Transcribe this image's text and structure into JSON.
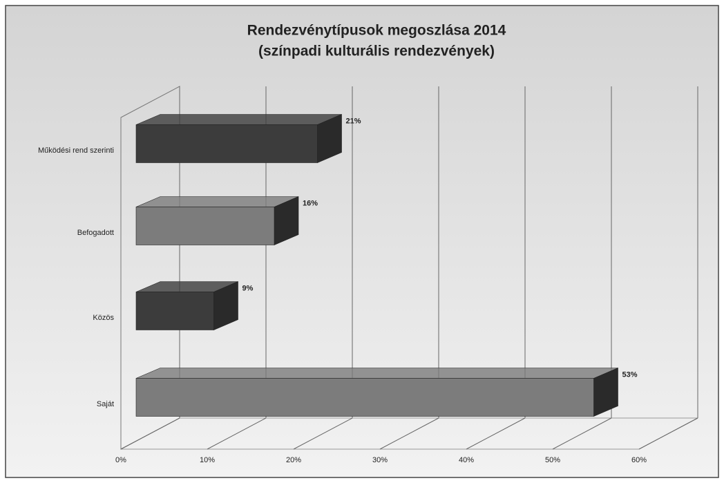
{
  "chart_data": {
    "type": "bar3d",
    "title": "Rendezvénytípusok megoszlása 2014",
    "subtitle": "(színpadi kulturális rendezvények)",
    "categories": [
      "Működési rend szerinti",
      "Befogadott",
      "Közös",
      "Saját"
    ],
    "values": [
      21,
      16,
      9,
      53
    ],
    "value_labels": [
      "21%",
      "16%",
      "9%",
      "53%"
    ],
    "colors": [
      "#3c3c3c",
      "#7c7c7c",
      "#3c3c3c",
      "#7c7c7c"
    ],
    "xlim": [
      0,
      60
    ],
    "xticks": [
      {
        "value": 0,
        "label": "0%"
      },
      {
        "value": 10,
        "label": "10%"
      },
      {
        "value": 20,
        "label": "20%"
      },
      {
        "value": 30,
        "label": "30%"
      },
      {
        "value": 40,
        "label": "40%"
      },
      {
        "value": 50,
        "label": "50%"
      },
      {
        "value": 60,
        "label": "60%"
      }
    ],
    "grid": true
  }
}
